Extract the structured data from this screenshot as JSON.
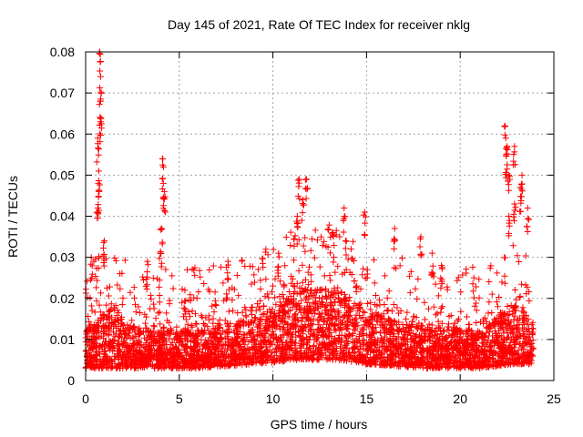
{
  "chart_data": {
    "type": "scatter",
    "title": "Day 145 of 2021, Rate Of TEC Index for receiver nklg",
    "xlabel": "GPS time / hours",
    "ylabel": "ROTI / TECUs",
    "xlim": [
      0,
      25
    ],
    "ylim": [
      0,
      0.08
    ],
    "x_ticks": [
      0,
      5,
      10,
      15,
      20,
      25
    ],
    "y_ticks": [
      0,
      0.01,
      0.02,
      0.03,
      0.04,
      0.05,
      0.06,
      0.07,
      0.08
    ],
    "x_tick_labels": [
      "0",
      "5",
      "10",
      "15",
      "20",
      "25"
    ],
    "y_tick_labels": [
      "0",
      "0.01",
      "0.02",
      "0.03",
      "0.04",
      "0.05",
      "0.06",
      "0.07",
      "0.08"
    ],
    "grid": true,
    "marker": "+",
    "color": "#ff0000",
    "series": [
      {
        "name": "ROTI",
        "x_range": [
          0.0,
          23.9
        ],
        "baseline_envelope": [
          {
            "x": 0.0,
            "low": 0.003,
            "high": 0.012
          },
          {
            "x": 1.0,
            "low": 0.003,
            "high": 0.016
          },
          {
            "x": 3.0,
            "low": 0.003,
            "high": 0.012
          },
          {
            "x": 6.0,
            "low": 0.003,
            "high": 0.012
          },
          {
            "x": 9.0,
            "low": 0.004,
            "high": 0.015
          },
          {
            "x": 11.5,
            "low": 0.005,
            "high": 0.022
          },
          {
            "x": 13.5,
            "low": 0.005,
            "high": 0.022
          },
          {
            "x": 15.0,
            "low": 0.004,
            "high": 0.016
          },
          {
            "x": 18.0,
            "low": 0.003,
            "high": 0.013
          },
          {
            "x": 21.0,
            "low": 0.003,
            "high": 0.012
          },
          {
            "x": 23.0,
            "low": 0.004,
            "high": 0.018
          },
          {
            "x": 23.9,
            "low": 0.004,
            "high": 0.014
          }
        ],
        "peaks": [
          {
            "x": 0.75,
            "y": 0.08
          },
          {
            "x": 0.8,
            "y": 0.074
          },
          {
            "x": 0.78,
            "y": 0.068
          },
          {
            "x": 0.8,
            "y": 0.063
          },
          {
            "x": 0.65,
            "y": 0.059
          },
          {
            "x": 0.7,
            "y": 0.051
          },
          {
            "x": 0.72,
            "y": 0.046
          },
          {
            "x": 0.65,
            "y": 0.042
          },
          {
            "x": 0.3,
            "y": 0.03
          },
          {
            "x": 1.0,
            "y": 0.034
          },
          {
            "x": 3.3,
            "y": 0.029
          },
          {
            "x": 4.1,
            "y": 0.054
          },
          {
            "x": 4.15,
            "y": 0.048
          },
          {
            "x": 4.2,
            "y": 0.046
          },
          {
            "x": 4.05,
            "y": 0.037
          },
          {
            "x": 4.0,
            "y": 0.031
          },
          {
            "x": 5.3,
            "y": 0.022
          },
          {
            "x": 7.6,
            "y": 0.029
          },
          {
            "x": 10.3,
            "y": 0.031
          },
          {
            "x": 11.4,
            "y": 0.049
          },
          {
            "x": 11.8,
            "y": 0.049
          },
          {
            "x": 11.6,
            "y": 0.044
          },
          {
            "x": 11.3,
            "y": 0.04
          },
          {
            "x": 13.8,
            "y": 0.042
          },
          {
            "x": 14.9,
            "y": 0.041
          },
          {
            "x": 13.2,
            "y": 0.036
          },
          {
            "x": 16.5,
            "y": 0.037
          },
          {
            "x": 17.9,
            "y": 0.035
          },
          {
            "x": 18.5,
            "y": 0.031
          },
          {
            "x": 19.0,
            "y": 0.028
          },
          {
            "x": 22.4,
            "y": 0.062
          },
          {
            "x": 22.5,
            "y": 0.057
          },
          {
            "x": 22.45,
            "y": 0.055
          },
          {
            "x": 22.9,
            "y": 0.057
          },
          {
            "x": 22.6,
            "y": 0.05
          },
          {
            "x": 23.3,
            "y": 0.05
          },
          {
            "x": 23.2,
            "y": 0.047
          },
          {
            "x": 22.9,
            "y": 0.043
          },
          {
            "x": 22.6,
            "y": 0.04
          },
          {
            "x": 23.6,
            "y": 0.042
          }
        ]
      }
    ]
  }
}
